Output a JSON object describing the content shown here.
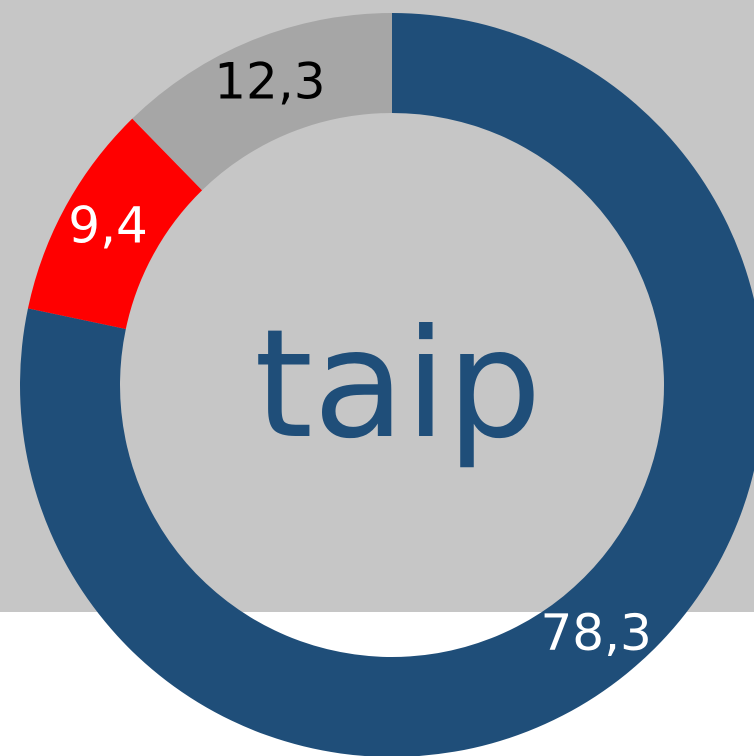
{
  "chart_data": {
    "type": "donut",
    "center_label": "taip",
    "values": [
      78.3,
      9.4,
      12.3
    ],
    "value_labels": [
      "78,3",
      "9,4",
      "12,3"
    ],
    "colors": [
      "#1f4e79",
      "#ff0000",
      "#a6a6a6"
    ],
    "label_colors": [
      "#ffffff",
      "#ffffff",
      "#000000"
    ]
  }
}
